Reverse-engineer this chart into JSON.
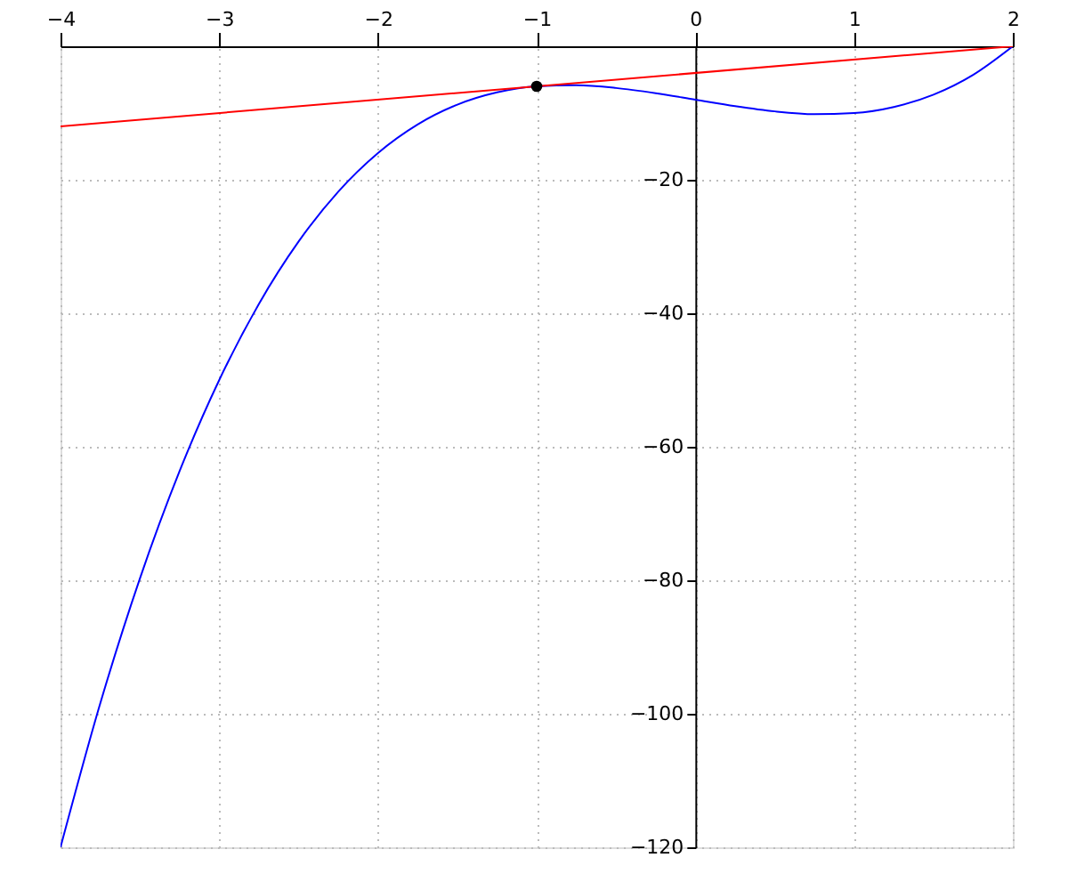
{
  "chart_data": {
    "type": "line",
    "x": [
      -4,
      -3.75,
      -3.5,
      -3.25,
      -3,
      -2.75,
      -2.5,
      -2.25,
      -2,
      -1.75,
      -1.5,
      -1.25,
      -1,
      -0.75,
      -0.5,
      -0.25,
      0,
      0.25,
      0.5,
      0.75,
      1,
      1.25,
      1.5,
      1.75,
      2
    ],
    "xlim": [
      -4,
      2
    ],
    "ylim": [
      -120,
      0
    ],
    "xticks": [
      -4,
      -3,
      -2,
      -1,
      0,
      1,
      2
    ],
    "yticks": [
      -120,
      -100,
      -80,
      -60,
      -40,
      -20
    ],
    "grid": true,
    "series": [
      {
        "color": "#0000ff",
        "values": [
          -120,
          -98.47,
          -79.75,
          -63.66,
          -50,
          -38.59,
          -29.25,
          -21.78,
          -16,
          -11.72,
          -8.75,
          -6.91,
          -6,
          -5.84,
          -6.25,
          -7.03,
          -8,
          -8.97,
          -9.75,
          -10.16,
          -10,
          -9.09,
          -7.25,
          -4.28,
          0
        ]
      },
      {
        "color": "#ff0000",
        "x": [
          -4,
          2
        ],
        "values": [
          -12,
          0
        ]
      },
      {
        "type": "scatter",
        "color": "#000000",
        "x": [
          -1
        ],
        "values": [
          -6
        ]
      }
    ]
  }
}
